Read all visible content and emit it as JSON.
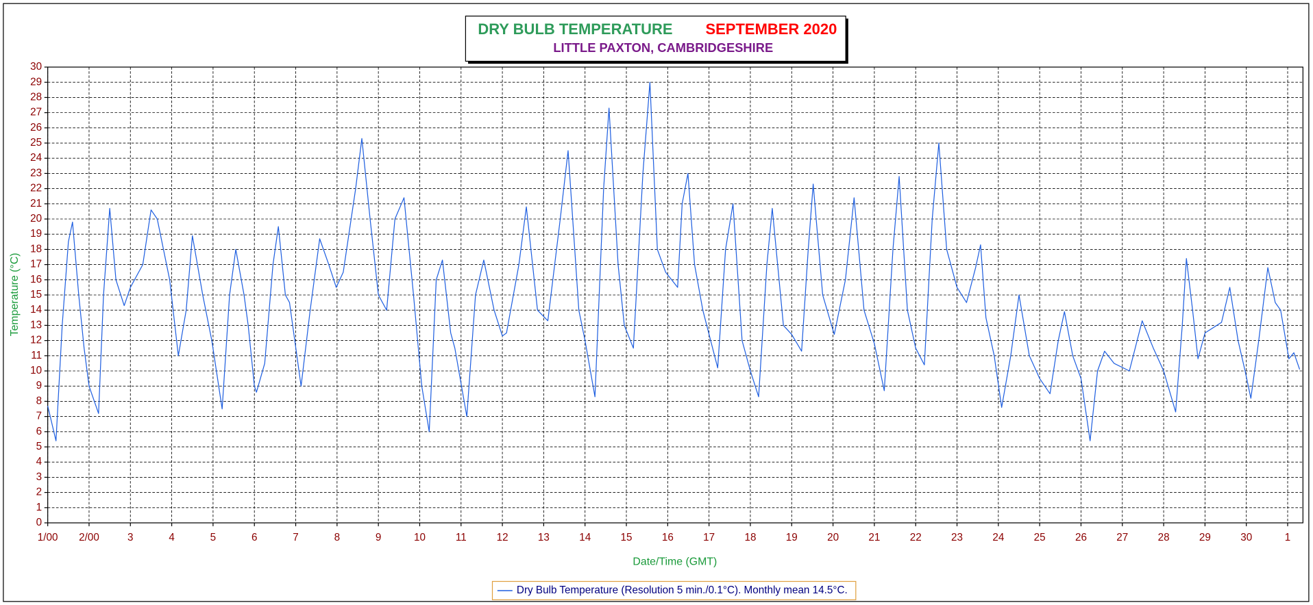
{
  "chart_data": {
    "type": "line",
    "title": "DRY BULB TEMPERATURE",
    "title_period": "SEPTEMBER 2020",
    "subtitle": "LITTLE PAXTON, CAMBRIDGESHIRE",
    "x_label": "Date/Time (GMT)",
    "y_label": "Temperature (°C)",
    "xlim": [
      0,
      30.37
    ],
    "ylim": [
      0,
      30
    ],
    "grid": true,
    "legend": "bottom",
    "xticks": [
      {
        "value": 0,
        "label": "1/00"
      },
      {
        "value": 1,
        "label": "2/00"
      },
      {
        "value": 2,
        "label": "3"
      },
      {
        "value": 3,
        "label": "4"
      },
      {
        "value": 4,
        "label": "5"
      },
      {
        "value": 5,
        "label": "6"
      },
      {
        "value": 6,
        "label": "7"
      },
      {
        "value": 7,
        "label": "8"
      },
      {
        "value": 8,
        "label": "9"
      },
      {
        "value": 9,
        "label": "10"
      },
      {
        "value": 10,
        "label": "11"
      },
      {
        "value": 11,
        "label": "12"
      },
      {
        "value": 12,
        "label": "13"
      },
      {
        "value": 13,
        "label": "14"
      },
      {
        "value": 14,
        "label": "15"
      },
      {
        "value": 15,
        "label": "16"
      },
      {
        "value": 16,
        "label": "17"
      },
      {
        "value": 17,
        "label": "18"
      },
      {
        "value": 18,
        "label": "19"
      },
      {
        "value": 19,
        "label": "20"
      },
      {
        "value": 20,
        "label": "21"
      },
      {
        "value": 21,
        "label": "22"
      },
      {
        "value": 22,
        "label": "23"
      },
      {
        "value": 23,
        "label": "24"
      },
      {
        "value": 24,
        "label": "25"
      },
      {
        "value": 25,
        "label": "26"
      },
      {
        "value": 26,
        "label": "27"
      },
      {
        "value": 27,
        "label": "28"
      },
      {
        "value": 28,
        "label": "29"
      },
      {
        "value": 29,
        "label": "30"
      },
      {
        "value": 30,
        "label": "1"
      }
    ],
    "yticks": [
      0,
      1,
      2,
      3,
      4,
      5,
      6,
      7,
      8,
      9,
      10,
      11,
      12,
      13,
      14,
      15,
      16,
      17,
      18,
      19,
      20,
      21,
      22,
      23,
      24,
      25,
      26,
      27,
      28,
      29,
      30
    ],
    "x": [
      0,
      0.2,
      0.35,
      0.5,
      0.6,
      0.75,
      0.88,
      1.0,
      1.23,
      1.35,
      1.5,
      1.65,
      1.85,
      2.0,
      2.3,
      2.5,
      2.65,
      2.95,
      3.16,
      3.35,
      3.5,
      3.75,
      3.97,
      4.22,
      4.4,
      4.55,
      4.75,
      4.85,
      5.0,
      5.05,
      5.25,
      5.45,
      5.58,
      5.75,
      5.85,
      6.13,
      6.35,
      6.58,
      6.8,
      6.98,
      7.15,
      7.45,
      7.6,
      7.8,
      8.0,
      8.2,
      8.4,
      8.62,
      8.85,
      9.05,
      9.23,
      9.4,
      9.55,
      9.75,
      9.85,
      10.14,
      10.35,
      10.55,
      10.8,
      11.0,
      11.1,
      11.4,
      11.58,
      11.85,
      12.1,
      12.4,
      12.59,
      12.85,
      13.0,
      13.24,
      13.45,
      13.58,
      13.8,
      13.95,
      14.17,
      14.4,
      14.57,
      14.75,
      14.95,
      15.24,
      15.35,
      15.49,
      15.65,
      15.85,
      16.21,
      16.4,
      16.58,
      16.8,
      17.0,
      17.2,
      17.4,
      17.53,
      17.8,
      18.0,
      18.24,
      18.4,
      18.52,
      18.75,
      19.03,
      19.3,
      19.51,
      19.75,
      20.0,
      20.24,
      20.45,
      20.6,
      20.8,
      21.0,
      21.21,
      21.4,
      21.56,
      21.75,
      22.0,
      22.23,
      22.45,
      22.57,
      22.7,
      22.9,
      23.08,
      23.3,
      23.5,
      23.75,
      24.0,
      24.25,
      24.45,
      24.6,
      24.8,
      25.0,
      25.22,
      25.4,
      25.57,
      25.8,
      26.17,
      26.48,
      26.75,
      27.0,
      27.29,
      27.45,
      27.55,
      27.7,
      27.83,
      28.0,
      28.4,
      28.6,
      28.8,
      28.97,
      29.11,
      29.3,
      29.52,
      29.7,
      29.83,
      30.03,
      30.15,
      30.29
    ],
    "series": [
      {
        "name": "Dry Bulb Temperature (Resolution 5 min./0.1°C). Monthly mean 14.5°C.",
        "color": "#1f5fe0",
        "values": [
          7.7,
          5.4,
          13,
          18.5,
          19.8,
          15,
          11.5,
          9,
          7.2,
          15,
          20.7,
          16,
          14.3,
          15.5,
          17,
          20.6,
          20,
          16,
          11,
          14,
          18.9,
          15,
          12,
          7.5,
          15,
          18,
          15,
          13,
          9,
          8.6,
          10.5,
          17,
          19.5,
          15,
          14.5,
          9,
          14,
          18.7,
          17,
          15.5,
          16.5,
          22,
          25.3,
          20,
          15,
          14,
          20,
          21.4,
          15,
          9,
          6,
          16,
          17.3,
          12.5,
          11.5,
          7,
          15,
          17.3,
          14,
          12.3,
          12.5,
          17,
          20.8,
          14,
          13.3,
          20,
          24.5,
          14,
          12,
          8.3,
          22,
          27.3,
          17,
          13,
          11.5,
          23,
          29,
          18,
          16.5,
          15.5,
          21,
          23,
          17,
          14,
          10.2,
          18,
          21,
          12,
          10,
          8.3,
          17,
          20.7,
          13,
          12.4,
          11.3,
          18,
          22.3,
          15,
          12.4,
          16,
          21.4,
          14,
          11.8,
          8.7,
          18,
          22.8,
          14,
          11.5,
          10.4,
          20,
          25,
          18,
          15.5,
          14.5,
          16.8,
          18.3,
          13.5,
          11,
          7.6,
          11,
          15,
          11,
          9.5,
          8.5,
          12,
          13.9,
          11,
          9.5,
          5.4,
          10,
          11.3,
          10.5,
          10,
          13.3,
          11.5,
          10,
          7.3,
          13,
          17.4,
          14,
          10.8,
          12.5,
          13.2,
          15.5,
          12,
          10,
          8.2,
          12,
          16.8,
          14.5,
          14,
          10.8,
          11.2,
          10.1
        ]
      }
    ],
    "title_colors": {
      "title": "#2e9b5a",
      "title_period": "#ff0000",
      "subtitle": "#7a1a8a",
      "axis_label": "#1a9a3a"
    }
  }
}
